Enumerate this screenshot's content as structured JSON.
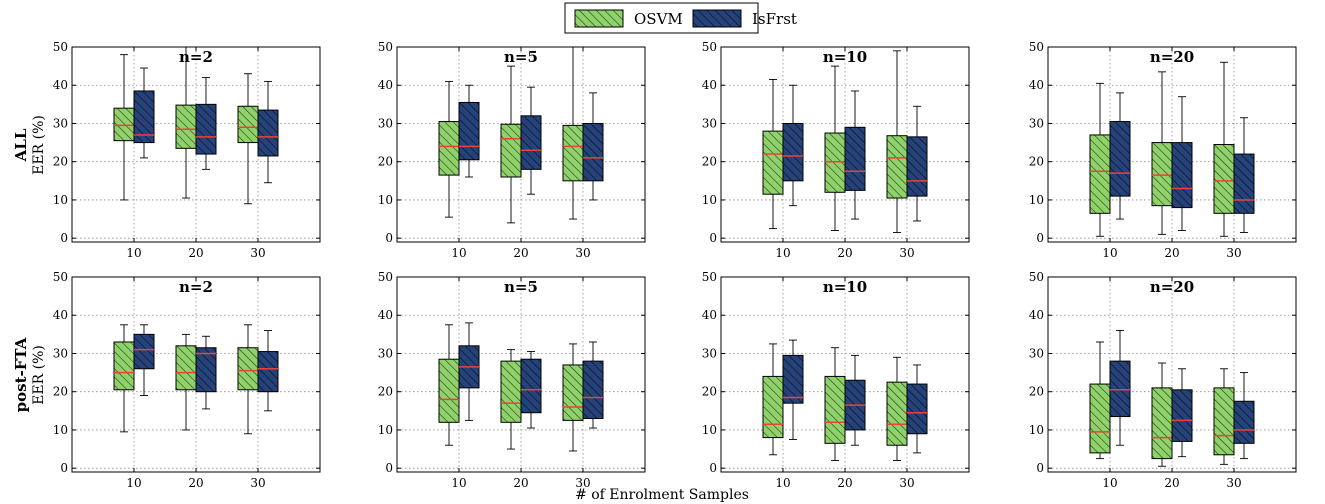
{
  "legend": {
    "entries": [
      {
        "name": "OSVM",
        "color": "#8fd16a"
      },
      {
        "name": "IsFrst",
        "color": "#25427a"
      }
    ]
  },
  "xlabel": "# of Enrolment Samples",
  "ylabel": "EER (%)",
  "rows": [
    {
      "label": "ALL"
    },
    {
      "label": "post-FTA"
    }
  ],
  "colors": {
    "median": "#e8433a",
    "grid": "#8a8a8a",
    "osvm_fill": "#8fd16a",
    "isfrst_fill": "#25427a"
  },
  "chart_data": [
    {
      "type": "box",
      "row": "ALL",
      "title": "n=2",
      "ylim": [
        0,
        50
      ],
      "yticks": [
        0,
        10,
        20,
        30,
        40,
        50
      ],
      "categories": [
        "10",
        "20",
        "30"
      ],
      "grid": true,
      "series": [
        {
          "name": "OSVM",
          "boxes": [
            {
              "whislo": 10,
              "q1": 25.5,
              "med": 29.5,
              "q3": 34,
              "whishi": 48
            },
            {
              "whislo": 10.5,
              "q1": 23.5,
              "med": 28.5,
              "q3": 34.8,
              "whishi": 50
            },
            {
              "whislo": 9,
              "q1": 25,
              "med": 29,
              "q3": 34.5,
              "whishi": 43
            }
          ]
        },
        {
          "name": "IsFrst",
          "boxes": [
            {
              "whislo": 21,
              "q1": 25,
              "med": 27,
              "q3": 38.5,
              "whishi": 44.5
            },
            {
              "whislo": 18,
              "q1": 22,
              "med": 26.5,
              "q3": 35,
              "whishi": 42
            },
            {
              "whislo": 14.5,
              "q1": 21.5,
              "med": 26.5,
              "q3": 33.5,
              "whishi": 41
            }
          ]
        }
      ]
    },
    {
      "type": "box",
      "row": "ALL",
      "title": "n=5",
      "ylim": [
        0,
        50
      ],
      "yticks": [
        0,
        10,
        20,
        30,
        40,
        50
      ],
      "categories": [
        "10",
        "20",
        "30"
      ],
      "grid": true,
      "series": [
        {
          "name": "OSVM",
          "boxes": [
            {
              "whislo": 5.5,
              "q1": 16.5,
              "med": 24,
              "q3": 30.5,
              "whishi": 41
            },
            {
              "whislo": 4,
              "q1": 16,
              "med": 26,
              "q3": 29.8,
              "whishi": 45
            },
            {
              "whislo": 5,
              "q1": 15,
              "med": 24,
              "q3": 29.5,
              "whishi": 50
            }
          ]
        },
        {
          "name": "IsFrst",
          "boxes": [
            {
              "whislo": 16,
              "q1": 20.5,
              "med": 24,
              "q3": 35.5,
              "whishi": 40
            },
            {
              "whislo": 11.5,
              "q1": 18,
              "med": 23,
              "q3": 32,
              "whishi": 39.5
            },
            {
              "whislo": 10,
              "q1": 15,
              "med": 21,
              "q3": 30,
              "whishi": 38
            }
          ]
        }
      ]
    },
    {
      "type": "box",
      "row": "ALL",
      "title": "n=10",
      "ylim": [
        0,
        50
      ],
      "yticks": [
        0,
        10,
        20,
        30,
        40,
        50
      ],
      "categories": [
        "10",
        "20",
        "30"
      ],
      "grid": true,
      "series": [
        {
          "name": "OSVM",
          "boxes": [
            {
              "whislo": 2.5,
              "q1": 11.5,
              "med": 22,
              "q3": 28,
              "whishi": 41.5
            },
            {
              "whislo": 2,
              "q1": 12,
              "med": 20,
              "q3": 27.5,
              "whishi": 45
            },
            {
              "whislo": 1.5,
              "q1": 10.5,
              "med": 21,
              "q3": 26.8,
              "whishi": 49
            }
          ]
        },
        {
          "name": "IsFrst",
          "boxes": [
            {
              "whislo": 8.5,
              "q1": 15,
              "med": 21.5,
              "q3": 30,
              "whishi": 40
            },
            {
              "whislo": 5,
              "q1": 12.5,
              "med": 17.5,
              "q3": 29,
              "whishi": 38.5
            },
            {
              "whislo": 4.5,
              "q1": 11,
              "med": 15,
              "q3": 26.5,
              "whishi": 34.5
            }
          ]
        }
      ]
    },
    {
      "type": "box",
      "row": "ALL",
      "title": "n=20",
      "ylim": [
        0,
        50
      ],
      "yticks": [
        0,
        10,
        20,
        30,
        40,
        50
      ],
      "categories": [
        "10",
        "20",
        "30"
      ],
      "grid": true,
      "series": [
        {
          "name": "OSVM",
          "boxes": [
            {
              "whislo": 0.5,
              "q1": 6.5,
              "med": 17.5,
              "q3": 27,
              "whishi": 40.5
            },
            {
              "whislo": 1,
              "q1": 8.5,
              "med": 16.5,
              "q3": 25,
              "whishi": 43.5
            },
            {
              "whislo": 0.5,
              "q1": 6.5,
              "med": 15,
              "q3": 24.5,
              "whishi": 46
            }
          ]
        },
        {
          "name": "IsFrst",
          "boxes": [
            {
              "whislo": 5,
              "q1": 11,
              "med": 17,
              "q3": 30.5,
              "whishi": 38
            },
            {
              "whislo": 2,
              "q1": 8,
              "med": 13,
              "q3": 25,
              "whishi": 37
            },
            {
              "whislo": 1.5,
              "q1": 6.5,
              "med": 10,
              "q3": 22,
              "whishi": 31.5
            }
          ]
        }
      ]
    },
    {
      "type": "box",
      "row": "post-FTA",
      "title": "n=2",
      "ylim": [
        0,
        50
      ],
      "yticks": [
        0,
        10,
        20,
        30,
        40,
        50
      ],
      "categories": [
        "10",
        "20",
        "30"
      ],
      "grid": true,
      "series": [
        {
          "name": "OSVM",
          "boxes": [
            {
              "whislo": 9.5,
              "q1": 20.5,
              "med": 25,
              "q3": 33,
              "whishi": 37.5
            },
            {
              "whislo": 10,
              "q1": 20.5,
              "med": 25,
              "q3": 32,
              "whishi": 35
            },
            {
              "whislo": 9,
              "q1": 20.5,
              "med": 25.5,
              "q3": 31.5,
              "whishi": 37.5
            }
          ]
        },
        {
          "name": "IsFrst",
          "boxes": [
            {
              "whislo": 19,
              "q1": 26,
              "med": 31,
              "q3": 35,
              "whishi": 37.5
            },
            {
              "whislo": 15.5,
              "q1": 20,
              "med": 30,
              "q3": 31.5,
              "whishi": 34.5
            },
            {
              "whislo": 15,
              "q1": 20,
              "med": 26,
              "q3": 30.5,
              "whishi": 36
            }
          ]
        }
      ]
    },
    {
      "type": "box",
      "row": "post-FTA",
      "title": "n=5",
      "ylim": [
        0,
        50
      ],
      "yticks": [
        0,
        10,
        20,
        30,
        40,
        50
      ],
      "categories": [
        "10",
        "20",
        "30"
      ],
      "grid": true,
      "series": [
        {
          "name": "OSVM",
          "boxes": [
            {
              "whislo": 6,
              "q1": 12,
              "med": 18,
              "q3": 28.5,
              "whishi": 37.5
            },
            {
              "whislo": 5,
              "q1": 12,
              "med": 17,
              "q3": 28,
              "whishi": 31
            },
            {
              "whislo": 4.5,
              "q1": 12.5,
              "med": 16,
              "q3": 27,
              "whishi": 32.5
            }
          ]
        },
        {
          "name": "IsFrst",
          "boxes": [
            {
              "whislo": 12.5,
              "q1": 21,
              "med": 26.5,
              "q3": 32,
              "whishi": 38
            },
            {
              "whislo": 10.5,
              "q1": 14.5,
              "med": 20.5,
              "q3": 28.5,
              "whishi": 30.5
            },
            {
              "whislo": 10.5,
              "q1": 13,
              "med": 18.5,
              "q3": 28,
              "whishi": 33
            }
          ]
        }
      ]
    },
    {
      "type": "box",
      "row": "post-FTA",
      "title": "n=10",
      "ylim": [
        0,
        50
      ],
      "yticks": [
        0,
        10,
        20,
        30,
        40,
        50
      ],
      "categories": [
        "10",
        "20",
        "30"
      ],
      "grid": true,
      "series": [
        {
          "name": "OSVM",
          "boxes": [
            {
              "whislo": 3.5,
              "q1": 8,
              "med": 11.5,
              "q3": 24,
              "whishi": 32.5
            },
            {
              "whislo": 2,
              "q1": 6.5,
              "med": 12,
              "q3": 24,
              "whishi": 31.5
            },
            {
              "whislo": 2,
              "q1": 6,
              "med": 11.5,
              "q3": 22.5,
              "whishi": 29
            }
          ]
        },
        {
          "name": "IsFrst",
          "boxes": [
            {
              "whislo": 7.5,
              "q1": 17,
              "med": 18.5,
              "q3": 29.5,
              "whishi": 33.5
            },
            {
              "whislo": 6,
              "q1": 10,
              "med": 16.5,
              "q3": 23,
              "whishi": 29.5
            },
            {
              "whislo": 4,
              "q1": 9,
              "med": 14.5,
              "q3": 22,
              "whishi": 27
            }
          ]
        }
      ]
    },
    {
      "type": "box",
      "row": "post-FTA",
      "title": "n=20",
      "ylim": [
        0,
        50
      ],
      "yticks": [
        0,
        10,
        20,
        30,
        40,
        50
      ],
      "categories": [
        "10",
        "20",
        "30"
      ],
      "grid": true,
      "series": [
        {
          "name": "OSVM",
          "boxes": [
            {
              "whislo": 2.5,
              "q1": 4,
              "med": 9.5,
              "q3": 22,
              "whishi": 33
            },
            {
              "whislo": 0.5,
              "q1": 2.5,
              "med": 8,
              "q3": 21,
              "whishi": 27.5
            },
            {
              "whislo": 1,
              "q1": 3.5,
              "med": 8.5,
              "q3": 21,
              "whishi": 26
            }
          ]
        },
        {
          "name": "IsFrst",
          "boxes": [
            {
              "whislo": 6,
              "q1": 13.5,
              "med": 20.5,
              "q3": 28,
              "whishi": 36
            },
            {
              "whislo": 3,
              "q1": 7,
              "med": 12.5,
              "q3": 20.5,
              "whishi": 26
            },
            {
              "whislo": 2.5,
              "q1": 6.5,
              "med": 10,
              "q3": 17.5,
              "whishi": 25
            }
          ]
        }
      ]
    }
  ]
}
